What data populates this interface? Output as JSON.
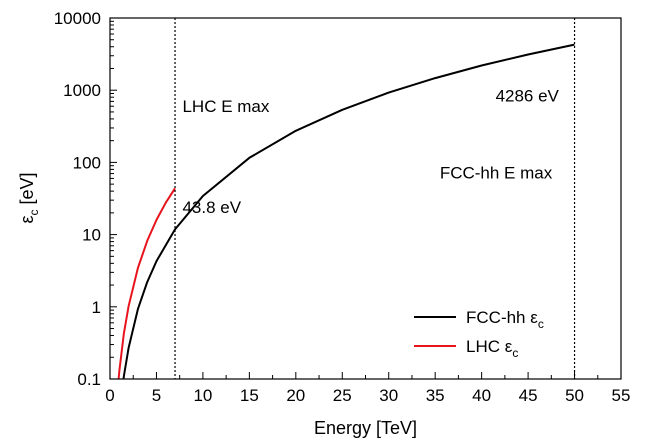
{
  "chart_data": {
    "type": "line",
    "xlabel": "Energy [TeV]",
    "ylabel": "ε",
    "ylabel_sub": "c",
    "ylabel_unit": " [eV]",
    "xlim": [
      0,
      55
    ],
    "ylim": [
      0.1,
      10000
    ],
    "yscale": "log",
    "grid": false,
    "legend_position": "bottom-right",
    "x_ticks": [
      0,
      5,
      10,
      15,
      20,
      25,
      30,
      35,
      40,
      45,
      50,
      55
    ],
    "x_tick_labels": [
      "0",
      "5",
      "10",
      "15",
      "20",
      "25",
      "30",
      "35",
      "40",
      "45",
      "50",
      "55"
    ],
    "y_ticks": [
      0.1,
      1,
      10,
      100,
      1000,
      10000
    ],
    "y_tick_labels": [
      "0.1",
      "1",
      "10",
      "100",
      "1000",
      "10000"
    ],
    "series": [
      {
        "name": "FCC-hh ε",
        "name_sub": "c",
        "color": "#000000",
        "x": [
          1.4,
          1.5,
          2,
          3,
          4,
          5,
          7,
          10,
          15,
          20,
          25,
          30,
          35,
          40,
          45,
          50
        ],
        "y": [
          0.09,
          0.11,
          0.27,
          0.93,
          2.2,
          4.3,
          11.8,
          34.3,
          115.7,
          274.3,
          535.8,
          925.8,
          1470,
          2195,
          3125,
          4286
        ]
      },
      {
        "name": "LHC ε",
        "name_sub": "c",
        "color": "#e8141d",
        "x": [
          0.9,
          1,
          1.5,
          2,
          3,
          4,
          5,
          6,
          7
        ],
        "y": [
          0.093,
          0.128,
          0.43,
          1.02,
          3.45,
          8.17,
          15.97,
          27.6,
          43.8
        ]
      }
    ],
    "vlines": [
      {
        "x": 7,
        "style": "dotted",
        "color": "#000000"
      },
      {
        "x": 50,
        "style": "dotted",
        "color": "#000000"
      }
    ],
    "annotations": [
      {
        "text": "LHC E max",
        "x": 7.8,
        "y": 500
      },
      {
        "text": "43.8 eV",
        "x": 7.8,
        "y": 20
      },
      {
        "text": "4286 eV",
        "x": 41.5,
        "y": 700
      },
      {
        "text": "FCC-hh E max",
        "x": 35.5,
        "y": 60
      }
    ]
  }
}
